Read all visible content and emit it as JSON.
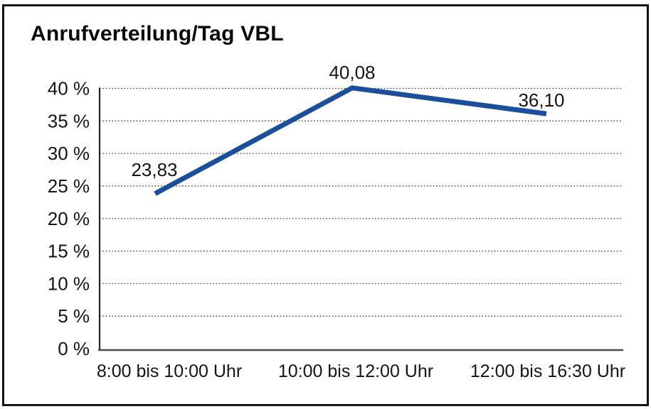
{
  "chart": {
    "title": "Anrufverteilung/Tag VBL"
  },
  "chart_data": {
    "type": "line",
    "title": "Anrufverteilung/Tag VBL",
    "categories": [
      "8:00 bis 10:00 Uhr",
      "10:00 bis 12:00 Uhr",
      "12:00 bis 16:30 Uhr"
    ],
    "series": [
      {
        "name": "Anrufverteilung",
        "values": [
          23.83,
          40.08,
          36.1
        ],
        "value_labels": [
          "23,83",
          "40,08",
          "36,10"
        ]
      }
    ],
    "xlabel": "",
    "ylabel": "",
    "ylim": [
      0,
      40
    ],
    "y_tick_step": 5,
    "y_tick_labels": [
      "0 %",
      "5 %",
      "10 %",
      "15 %",
      "20 %",
      "25 %",
      "30 %",
      "35 %",
      "40 %"
    ],
    "grid": "horizontal-dotted",
    "legend": "none",
    "line_color": "#1B4F9B",
    "axis_color": "#3a3a3a",
    "text_color": "#151515"
  }
}
